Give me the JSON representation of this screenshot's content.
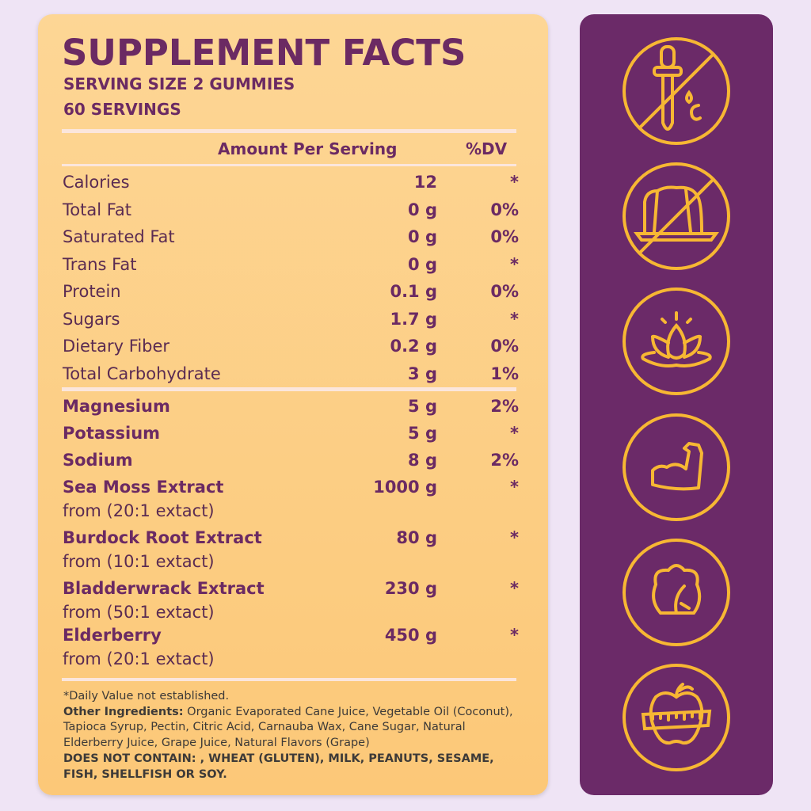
{
  "header": {
    "title": "SUPPLEMENT FACTS",
    "serving_size": "SERVING SIZE 2 GUMMIES",
    "servings": "60 SERVINGS"
  },
  "columns": {
    "amount": "Amount Per Serving",
    "dv": "%DV"
  },
  "nutrients": [
    {
      "label": "Calories",
      "amount": "12",
      "dv": "*"
    },
    {
      "label": "Total Fat",
      "amount": "0 g",
      "dv": "0%"
    },
    {
      "label": "Saturated Fat",
      "amount": "0 g",
      "dv": "0%"
    },
    {
      "label": "Trans Fat",
      "amount": "0 g",
      "dv": "*"
    },
    {
      "label": "Protein",
      "amount": "0.1 g",
      "dv": "0%"
    },
    {
      "label": "Sugars",
      "amount": "1.7 g",
      "dv": "*"
    },
    {
      "label": "Dietary Fiber",
      "amount": "0.2 g",
      "dv": "0%"
    },
    {
      "label": "Total Carbohydrate",
      "amount": "3 g",
      "dv": "1%"
    }
  ],
  "ingredients": [
    {
      "label": "Magnesium",
      "amount": "5 g",
      "dv": "2%"
    },
    {
      "label": "Potassium",
      "amount": "5 g",
      "dv": "*"
    },
    {
      "label": "Sodium",
      "amount": "8 g",
      "dv": "2%"
    },
    {
      "label": "Sea Moss Extract",
      "sub": "from (20:1 extact)",
      "amount": "1000 g",
      "dv": "*"
    },
    {
      "label": "Burdock Root Extract",
      "sub": "from (10:1 extact)",
      "amount": "80 g",
      "dv": "*"
    },
    {
      "label": "Bladderwrack Extract",
      "sub": "from (50:1 extact)",
      "amount": "230 g",
      "dv": "*"
    },
    {
      "label": "Elderberry",
      "sub": "from (20:1 extact)",
      "amount": "450 g",
      "dv": "*"
    }
  ],
  "footer": {
    "dv_note": "*Daily Value not established.",
    "other_label": "Other Ingredients:",
    "other_text": " Organic Evaporated Cane Juice, Vegetable Oil (Coconut), Tapioca Syrup, Pectin, Citric Acid, Carnauba Wax, Cane Sugar, Natural Elderberry Juice, Grape Juice, Natural Flavors (Grape)",
    "allergen": "DOES NOT CONTAIN: , WHEAT (GLUTEN), MILK, PEANUTS, SESAME, FISH, SHELLFISH OR SOY."
  },
  "icons": [
    "no-dropper-icon",
    "no-gelatin-icon",
    "lotus-icon",
    "muscle-arm-icon",
    "leaves-icon",
    "apple-measuring-tape-icon"
  ],
  "colors": {
    "purple": "#6b2a68",
    "gold": "#f7b733",
    "card": "#fdd18a",
    "background": "#efe4f5"
  }
}
